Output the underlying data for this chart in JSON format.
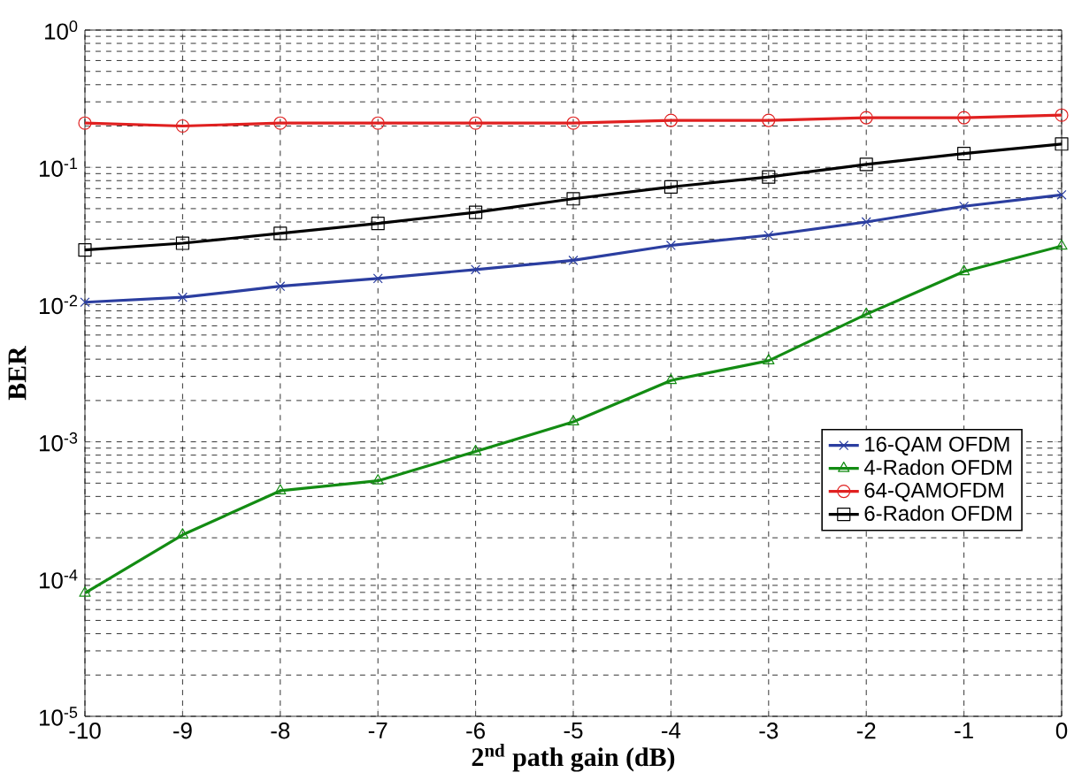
{
  "chart_data": {
    "type": "line",
    "xlabel": "2$^{nd}$ path gain (dB)",
    "ylabel": "BER",
    "log": "y",
    "grid": true,
    "legend": "bottom right",
    "line_style": "solid",
    "x": [
      -10,
      -9,
      -8,
      -7,
      -6,
      -5,
      -4,
      -3,
      -2,
      -1,
      0
    ],
    "xlim": [
      -10,
      0
    ],
    "ylim": [
      1e-05,
      1
    ],
    "xticks": [
      -10,
      -9,
      -8,
      -7,
      -6,
      -5,
      -4,
      -3,
      -2,
      -1,
      0
    ],
    "yticks": [
      {
        "value": 1e-05,
        "label": "10$^{-5}$"
      },
      {
        "value": 0.0001,
        "label": "10$^{-4}$"
      },
      {
        "value": 0.001,
        "label": "10$^{-3}$"
      },
      {
        "value": 0.01,
        "label": "10$^{-2}$"
      },
      {
        "value": 0.1,
        "label": "10$^{-1}$"
      },
      {
        "value": 1,
        "label": "10$^{0}$"
      }
    ],
    "series": [
      {
        "name": "16-QAM OFDM",
        "color": "#2b3ea0",
        "marker": "cross",
        "values": [
          0.0104,
          0.0113,
          0.0136,
          0.0155,
          0.018,
          0.021,
          0.027,
          0.032,
          0.04,
          0.052,
          0.063
        ]
      },
      {
        "name": "4-Radon OFDM",
        "color": "#138c13",
        "marker": "triangle",
        "values": [
          7.9e-05,
          0.00021,
          0.00044,
          0.00052,
          0.00085,
          0.0014,
          0.0028,
          0.0039,
          0.0085,
          0.0174,
          0.0267
        ]
      },
      {
        "name": "64-QAMOFDM",
        "color": "#e02020",
        "marker": "circle",
        "values": [
          0.21,
          0.2,
          0.21,
          0.21,
          0.21,
          0.21,
          0.22,
          0.22,
          0.23,
          0.23,
          0.24
        ]
      },
      {
        "name": "6-Radon OFDM",
        "color": "#000000",
        "marker": "square",
        "values": [
          0.025,
          0.028,
          0.033,
          0.039,
          0.047,
          0.059,
          0.072,
          0.085,
          0.105,
          0.126,
          0.148
        ]
      }
    ]
  }
}
